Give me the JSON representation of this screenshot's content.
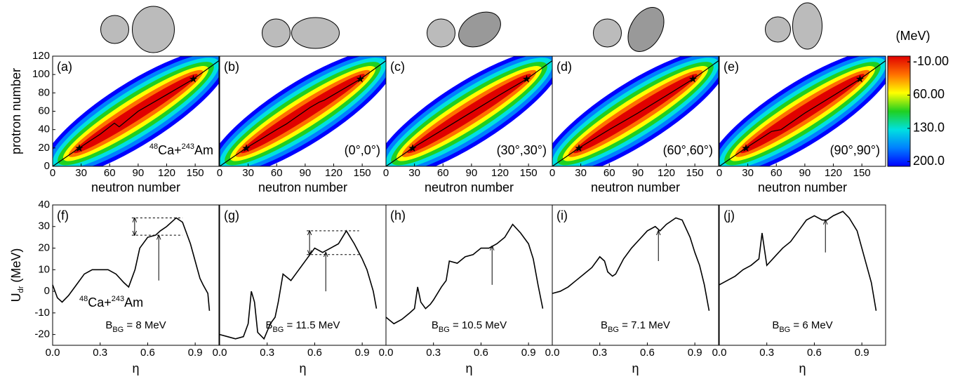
{
  "chart_data": [
    {
      "type": "contour",
      "label": "(a)",
      "annotation": [
        "48",
        "Ca+",
        "243",
        "Am"
      ],
      "xlabel": "neutron number",
      "ylabel": "protron number",
      "xlim": [
        0,
        175
      ],
      "ylim": [
        0,
        120
      ],
      "xticks": [
        0,
        30,
        60,
        90,
        120,
        150
      ],
      "yticks": [
        0,
        20,
        40,
        60,
        80,
        100,
        120
      ],
      "path": {
        "x": [
          0,
          28,
          50,
          65,
          70,
          90,
          120,
          148,
          175
        ],
        "y": [
          0,
          20,
          35,
          47,
          43,
          60,
          78,
          95,
          115
        ]
      },
      "stars": {
        "x": [
          28,
          148
        ],
        "y": [
          20,
          95
        ]
      }
    },
    {
      "type": "contour",
      "label": "(b)",
      "annotation": "(0°,0°)",
      "xlabel": "neutron number",
      "xlim": [
        0,
        175
      ],
      "ylim": [
        0,
        120
      ],
      "xticks": [
        0,
        30,
        60,
        90,
        120,
        150
      ],
      "path": {
        "x": [
          0,
          28,
          60,
          70,
          95,
          105,
          110,
          148,
          175
        ],
        "y": [
          0,
          20,
          40,
          46,
          64,
          70,
          72,
          95,
          115
        ]
      },
      "stars": {
        "x": [
          28,
          148
        ],
        "y": [
          20,
          95
        ]
      }
    },
    {
      "type": "contour",
      "label": "(c)",
      "annotation": "(30°,30°)",
      "xlabel": "neutron number",
      "xlim": [
        0,
        175
      ],
      "ylim": [
        0,
        120
      ],
      "xticks": [
        0,
        30,
        60,
        90,
        120,
        150
      ],
      "path": {
        "x": [
          0,
          28,
          60,
          90,
          120,
          148,
          175
        ],
        "y": [
          0,
          20,
          40,
          59,
          78,
          95,
          115
        ]
      },
      "stars": {
        "x": [
          28,
          148
        ],
        "y": [
          20,
          95
        ]
      }
    },
    {
      "type": "contour",
      "label": "(d)",
      "annotation": "(60°,60°)",
      "xlabel": "neutron number",
      "xlim": [
        0,
        175
      ],
      "ylim": [
        0,
        120
      ],
      "xticks": [
        0,
        30,
        60,
        90,
        120,
        150
      ],
      "path": {
        "x": [
          0,
          28,
          60,
          90,
          120,
          148,
          175
        ],
        "y": [
          0,
          20,
          40,
          58,
          77,
          95,
          115
        ]
      },
      "stars": {
        "x": [
          28,
          148
        ],
        "y": [
          20,
          95
        ]
      }
    },
    {
      "type": "contour",
      "label": "(e)",
      "annotation": "(90°,90°)",
      "xlabel": "neutron number",
      "xlim": [
        0,
        175
      ],
      "ylim": [
        0,
        120
      ],
      "xticks": [
        0,
        30,
        60,
        90,
        120,
        150
      ],
      "path": {
        "x": [
          0,
          28,
          55,
          65,
          90,
          120,
          148,
          175
        ],
        "y": [
          0,
          20,
          38,
          40,
          58,
          77,
          95,
          115
        ]
      },
      "stars": {
        "x": [
          28,
          148
        ],
        "y": [
          20,
          95
        ]
      }
    },
    {
      "type": "colorbar",
      "title": "(MeV)",
      "ylim": [
        -22,
        210
      ],
      "ticks": [
        {
          "value": -10,
          "label": "-10.00"
        },
        {
          "value": 60,
          "label": "60.00"
        },
        {
          "value": 130,
          "label": "130.0"
        },
        {
          "value": 200,
          "label": "200.0"
        }
      ],
      "colors": [
        "#e00000",
        "#ff7000",
        "#ffff00",
        "#20d020",
        "#00e0e0",
        "#0080ff",
        "#0000ff"
      ]
    },
    {
      "type": "line",
      "label": "(f)",
      "annotation": [
        "48",
        "Ca+",
        "243",
        "Am"
      ],
      "bbg": [
        "B",
        "BG",
        " = 8 MeV"
      ],
      "xlabel": "η",
      "ylabel": [
        "U",
        "dr",
        " (MeV)"
      ],
      "xlim": [
        0,
        1.05
      ],
      "ylim": [
        -25,
        40
      ],
      "xticks": [
        {
          "value": 0,
          "label": "0.0"
        },
        {
          "value": 0.3,
          "label": "0.3"
        },
        {
          "value": 0.6,
          "label": "0.6"
        },
        {
          "value": 0.9,
          "label": "0.9"
        }
      ],
      "yticks": [
        -20,
        -10,
        0,
        10,
        20,
        30,
        40
      ],
      "x": [
        0,
        0.03,
        0.06,
        0.1,
        0.15,
        0.2,
        0.25,
        0.3,
        0.35,
        0.4,
        0.45,
        0.48,
        0.52,
        0.55,
        0.6,
        0.65,
        0.68,
        0.72,
        0.78,
        0.82,
        0.87,
        0.9,
        0.93,
        0.95,
        0.98,
        0.99
      ],
      "values": [
        3,
        -3,
        -5,
        -2,
        3,
        8,
        10,
        10,
        10,
        8,
        4,
        2,
        10,
        20,
        25,
        26,
        28,
        30,
        34,
        32,
        22,
        14,
        6,
        3,
        -1,
        -9
      ],
      "arrow": {
        "x": 0.67,
        "y1": 5,
        "y2": 26
      },
      "barrier": {
        "x": [
          0.5,
          0.82
        ],
        "y": [
          26,
          34
        ]
      }
    },
    {
      "type": "line",
      "label": "(g)",
      "bbg": [
        "B",
        "BG",
        " = 11.5 MeV"
      ],
      "xlabel": "η",
      "xlim": [
        0,
        1.05
      ],
      "ylim": [
        -25,
        40
      ],
      "xticks": [
        {
          "value": 0,
          "label": "0.0"
        },
        {
          "value": 0.3,
          "label": "0.3"
        },
        {
          "value": 0.6,
          "label": "0.6"
        },
        {
          "value": 0.9,
          "label": "0.9"
        }
      ],
      "x": [
        0,
        0.05,
        0.1,
        0.15,
        0.18,
        0.2,
        0.22,
        0.24,
        0.28,
        0.32,
        0.35,
        0.37,
        0.4,
        0.45,
        0.5,
        0.55,
        0.6,
        0.65,
        0.7,
        0.75,
        0.8,
        0.85,
        0.9,
        0.93,
        0.97,
        0.99
      ],
      "values": [
        -20,
        -21,
        -22,
        -21,
        -15,
        0,
        -5,
        -19,
        -22,
        -15,
        -12,
        -5,
        8,
        5,
        10,
        15,
        20,
        18,
        20,
        22,
        28,
        22,
        15,
        10,
        0,
        -8
      ],
      "arrow": {
        "x": 0.67,
        "y1": 0,
        "y2": 18
      },
      "barrier": {
        "x": [
          0.55,
          0.88
        ],
        "y": [
          17,
          28
        ]
      }
    },
    {
      "type": "line",
      "label": "(h)",
      "bbg": [
        "B",
        "BG",
        " = 10.5 MeV"
      ],
      "xlabel": "η",
      "xlim": [
        0,
        1.05
      ],
      "ylim": [
        -25,
        40
      ],
      "xticks": [
        {
          "value": 0,
          "label": "0.0"
        },
        {
          "value": 0.3,
          "label": "0.3"
        },
        {
          "value": 0.6,
          "label": "0.6"
        },
        {
          "value": 0.9,
          "label": "0.9"
        }
      ],
      "x": [
        0,
        0.05,
        0.1,
        0.15,
        0.18,
        0.2,
        0.22,
        0.25,
        0.28,
        0.3,
        0.35,
        0.38,
        0.4,
        0.45,
        0.5,
        0.55,
        0.6,
        0.65,
        0.7,
        0.75,
        0.8,
        0.85,
        0.9,
        0.93,
        0.96,
        0.99
      ],
      "values": [
        -12,
        -15,
        -13,
        -10,
        -8,
        2,
        -5,
        -8,
        -6,
        -4,
        2,
        5,
        14,
        13,
        16,
        17,
        20,
        20,
        22,
        25,
        31,
        27,
        22,
        15,
        3,
        -8
      ],
      "arrow": {
        "x": 0.67,
        "y1": 3,
        "y2": 21
      }
    },
    {
      "type": "line",
      "label": "(i)",
      "bbg": [
        "B",
        "BG",
        " = 7.1 MeV"
      ],
      "xlabel": "η",
      "xlim": [
        0,
        1.05
      ],
      "ylim": [
        -25,
        40
      ],
      "xticks": [
        {
          "value": 0,
          "label": "0.0"
        },
        {
          "value": 0.3,
          "label": "0.3"
        },
        {
          "value": 0.6,
          "label": "0.6"
        },
        {
          "value": 0.9,
          "label": "0.9"
        }
      ],
      "x": [
        0,
        0.05,
        0.1,
        0.15,
        0.2,
        0.25,
        0.3,
        0.33,
        0.35,
        0.38,
        0.4,
        0.45,
        0.5,
        0.55,
        0.6,
        0.65,
        0.68,
        0.72,
        0.78,
        0.82,
        0.87,
        0.9,
        0.93,
        0.96,
        0.99
      ],
      "values": [
        -1,
        0,
        2,
        5,
        8,
        11,
        16,
        14,
        9,
        7,
        8,
        15,
        20,
        24,
        28,
        30,
        28,
        31,
        34,
        33,
        25,
        18,
        12,
        3,
        -9
      ],
      "arrow": {
        "x": 0.67,
        "y1": 14,
        "y2": 28
      }
    },
    {
      "type": "line",
      "label": "(j)",
      "bbg": [
        "B",
        "BG",
        " = 6 MeV"
      ],
      "xlabel": "η",
      "xlim": [
        0,
        1.05
      ],
      "ylim": [
        -25,
        40
      ],
      "xticks": [
        {
          "value": 0,
          "label": "0.0"
        },
        {
          "value": 0.3,
          "label": "0.3"
        },
        {
          "value": 0.6,
          "label": "0.6"
        },
        {
          "value": 0.9,
          "label": "0.9"
        }
      ],
      "x": [
        0,
        0.05,
        0.1,
        0.15,
        0.2,
        0.25,
        0.27,
        0.3,
        0.35,
        0.4,
        0.45,
        0.5,
        0.55,
        0.6,
        0.65,
        0.68,
        0.72,
        0.78,
        0.82,
        0.87,
        0.9,
        0.93,
        0.96,
        0.99
      ],
      "values": [
        3,
        5,
        7,
        10,
        12,
        15,
        27,
        12,
        16,
        20,
        23,
        28,
        33,
        35,
        33,
        33,
        35,
        37,
        34,
        28,
        20,
        12,
        4,
        -9
      ],
      "arrow": {
        "x": 0.67,
        "y1": 18,
        "y2": 33
      }
    }
  ]
}
